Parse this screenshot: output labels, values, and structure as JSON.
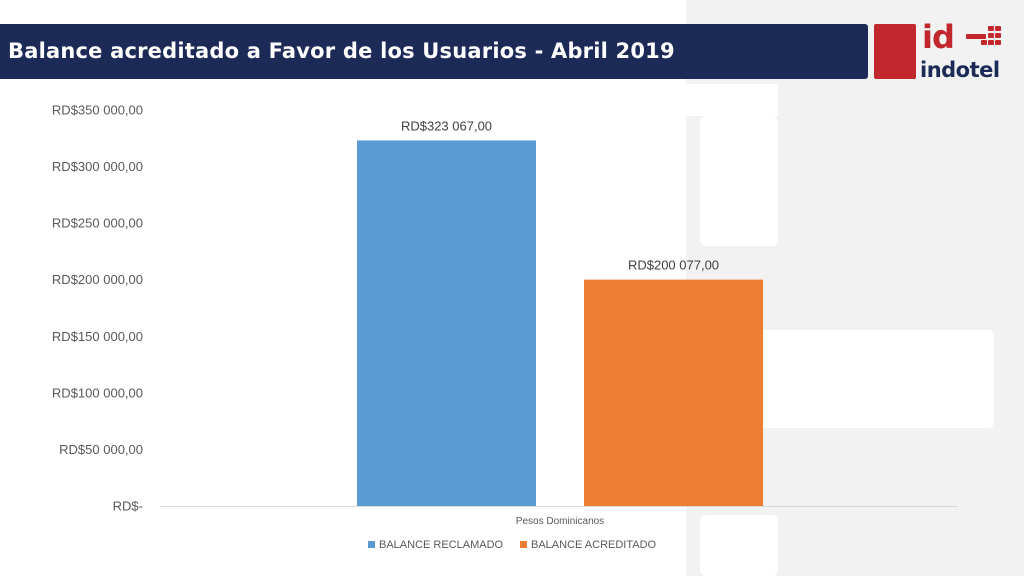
{
  "slide": {
    "title": "Balance acreditado a Favor de los Usuarios - Abril 2019",
    "logo": {
      "mark": "id",
      "wordmark": "indotel"
    }
  },
  "colors": {
    "title_bar": "#1b2a57",
    "brand_red": "#c1272d",
    "series_1": "#5b9bd5",
    "series_2": "#ed7d31"
  },
  "chart_data": {
    "type": "bar",
    "title": "",
    "categories": [
      "Pesos Dominicanos"
    ],
    "xlabel": "Pesos Dominicanos",
    "ylabel": "",
    "ylim": [
      0,
      350000
    ],
    "yticks": [
      0,
      50000,
      100000,
      150000,
      200000,
      250000,
      300000,
      350000
    ],
    "ytick_labels": [
      "RD$-",
      "RD$50 000,00",
      "RD$100 000,00",
      "RD$150 000,00",
      "RD$200 000,00",
      "RD$250 000,00",
      "RD$300 000,00",
      "RD$350 000,00"
    ],
    "grid": false,
    "legend_position": "bottom",
    "series": [
      {
        "name": "BALANCE RECLAMADO",
        "values": [
          323067
        ],
        "data_label": "RD$323 067,00",
        "color": "#5b9bd5"
      },
      {
        "name": "BALANCE ACREDITADO",
        "values": [
          200077
        ],
        "data_label": "RD$200 077,00",
        "color": "#ed7d31"
      }
    ]
  }
}
